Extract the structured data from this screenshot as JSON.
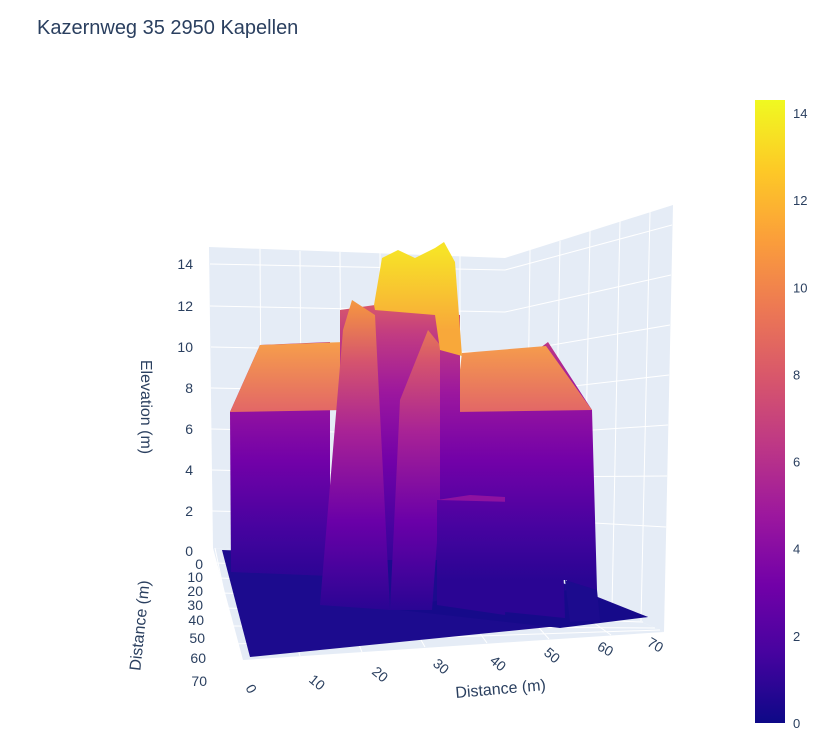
{
  "title": "Kazernweg 35 2950 Kapellen",
  "chart_data": {
    "type": "surface3d",
    "title": "Kazernweg 35 2950 Kapellen",
    "xlabel": "Distance (m)",
    "ylabel": "Distance (m)",
    "zlabel": "Elevation (m)",
    "x_ticks": [
      "0",
      "10",
      "20",
      "30",
      "40",
      "50",
      "60",
      "70"
    ],
    "y_ticks": [
      "0",
      "10",
      "20",
      "30",
      "40",
      "50",
      "60",
      "70"
    ],
    "z_ticks": [
      "0",
      "2",
      "4",
      "6",
      "8",
      "10",
      "12",
      "14"
    ],
    "xlim": [
      0,
      72
    ],
    "ylim": [
      0,
      72
    ],
    "zlim": [
      0,
      14.3
    ],
    "colorscale": "plasma",
    "colorbar": {
      "ticks": [
        "0",
        "2",
        "4",
        "6",
        "8",
        "10",
        "12",
        "14"
      ],
      "range": [
        0,
        14.3
      ]
    },
    "surface_summary": {
      "ground_elevation": 0,
      "main_roof_elevation": 10,
      "eave_elevation": 6.5,
      "central_ridge_elevation": 14,
      "front_wing_elevation": 12,
      "low_annex_elevation": 2.5
    },
    "grid": true,
    "colors": {
      "scene_background": "#e5ecf6",
      "grid": "#ffffff",
      "text": "#2a3f5f"
    }
  }
}
